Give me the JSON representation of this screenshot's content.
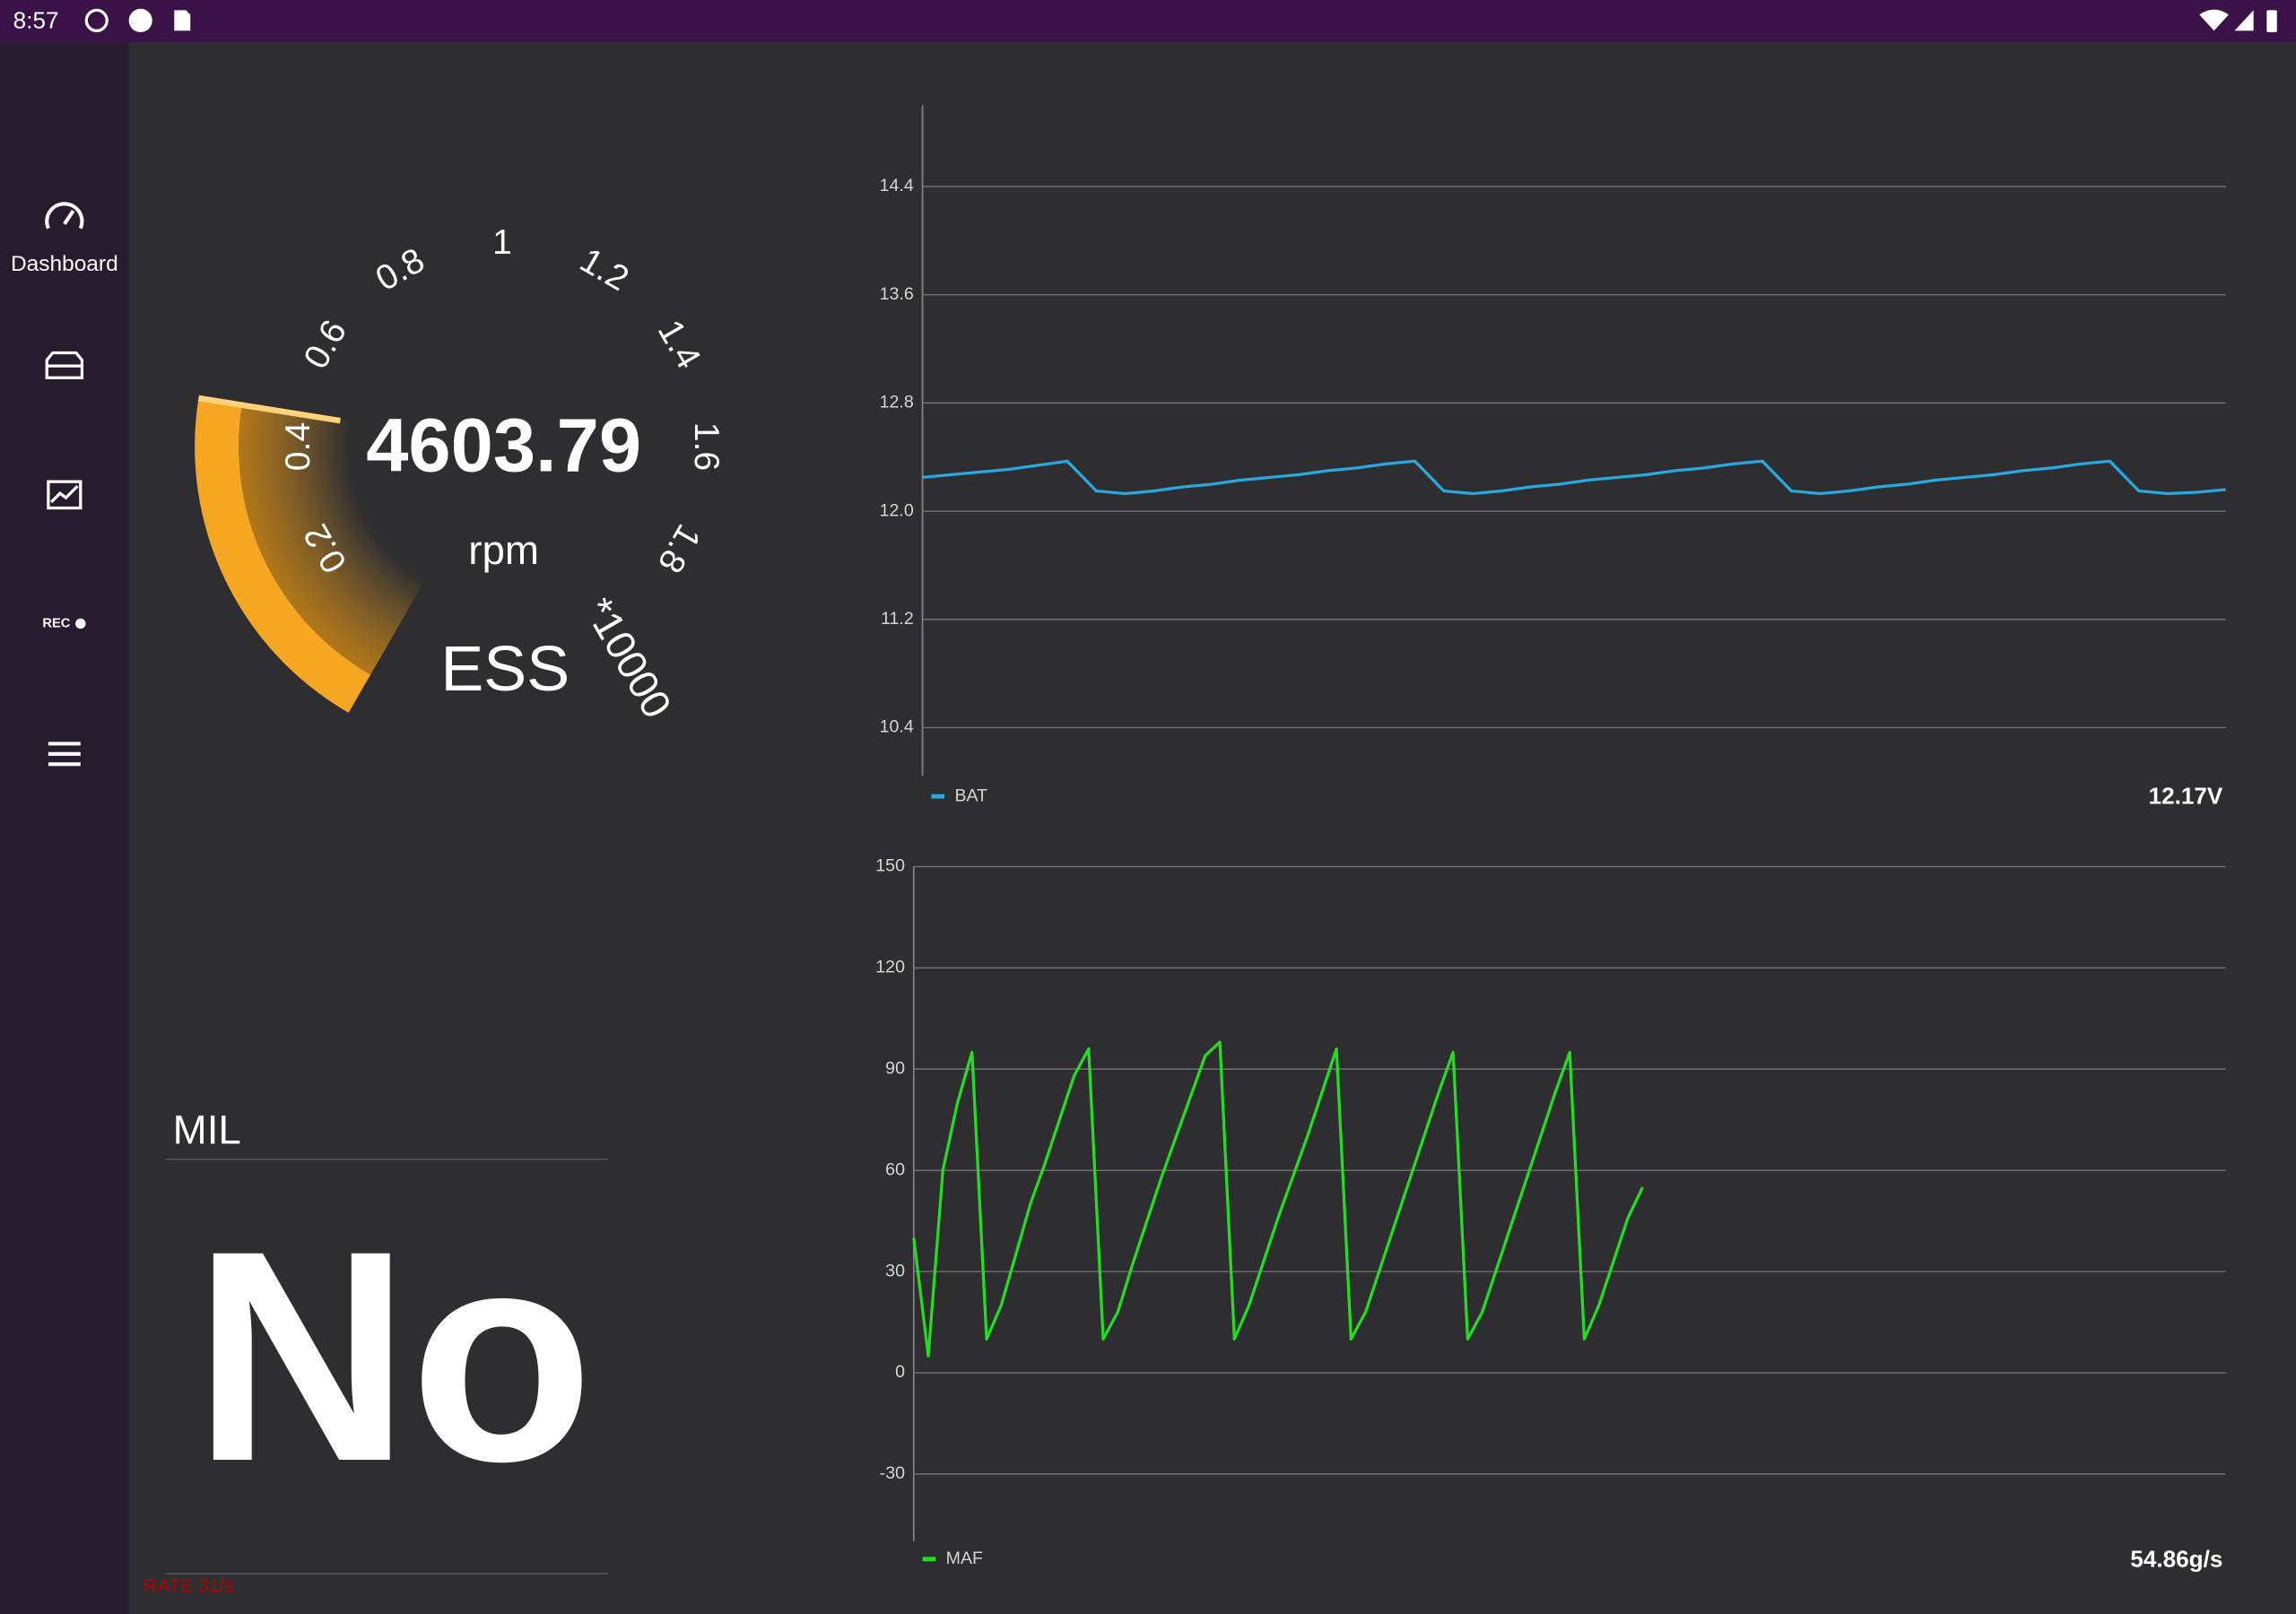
{
  "status_bar": {
    "time": "8:57"
  },
  "sidebar": {
    "dashboard": "Dashboard",
    "rec": "REC"
  },
  "gauge": {
    "type": "gauge",
    "value": 4603.79,
    "unit": "rpm",
    "label": "ESS",
    "ticks": [
      0.2,
      0.4,
      0.6,
      0.8,
      1,
      1.2,
      1.4,
      1.6,
      1.8
    ],
    "lim": [
      0,
      2
    ],
    "scale": {
      "value": 10000,
      "label": "*10000"
    },
    "color": "#f5a623"
  },
  "mil": {
    "title": "MIL",
    "value": "No",
    "rate": "RATE 31/s"
  },
  "chart_data": [
    {
      "type": "line",
      "grid": true,
      "ylim": [
        10,
        15
      ],
      "yticks": [
        10.4,
        11.2,
        {
          "value": 12,
          "label": "12.0"
        },
        12.8,
        13.6,
        14.4
      ],
      "current": "12.17V",
      "series": [
        {
          "name": "BAT",
          "color": "#29a9e1",
          "values": [
            12.25,
            12.27,
            12.29,
            12.31,
            12.34,
            12.37,
            12.15,
            12.13,
            12.15,
            12.18,
            12.2,
            12.23,
            12.25,
            12.27,
            12.3,
            12.32,
            12.35,
            12.37,
            12.15,
            12.13,
            12.15,
            12.18,
            12.2,
            12.23,
            12.25,
            12.27,
            12.3,
            12.32,
            12.35,
            12.37,
            12.15,
            12.13,
            12.15,
            12.18,
            12.2,
            12.23,
            12.25,
            12.27,
            12.3,
            12.32,
            12.35,
            12.37,
            12.15,
            12.13,
            12.14,
            12.16
          ]
        }
      ]
    },
    {
      "type": "line",
      "grid": true,
      "ylim": [
        -50,
        150
      ],
      "yticks": [
        -30,
        0,
        30,
        60,
        90,
        120,
        150
      ],
      "current": "54.86g/s",
      "series": [
        {
          "name": "MAF",
          "color": "#22dd22",
          "values": [
            40,
            5,
            60,
            80,
            95,
            10,
            20,
            35,
            50,
            62,
            75,
            88,
            96,
            10,
            18,
            32,
            45,
            58,
            70,
            82,
            94,
            98,
            10,
            20,
            33,
            46,
            58,
            70,
            83,
            96,
            10,
            18,
            31,
            44,
            57,
            70,
            83,
            95,
            10,
            18,
            31,
            44,
            57,
            70,
            83,
            95,
            10,
            20,
            33,
            46,
            55,
            null,
            null,
            null,
            null,
            null,
            null,
            null,
            null,
            null,
            null,
            null,
            null,
            null,
            null,
            null,
            null,
            null,
            null,
            null,
            null,
            null,
            null,
            null,
            null,
            null,
            null,
            null,
            null,
            null,
            null,
            null,
            null,
            null,
            null,
            null,
            null,
            null,
            null,
            null,
            null
          ]
        }
      ]
    }
  ]
}
